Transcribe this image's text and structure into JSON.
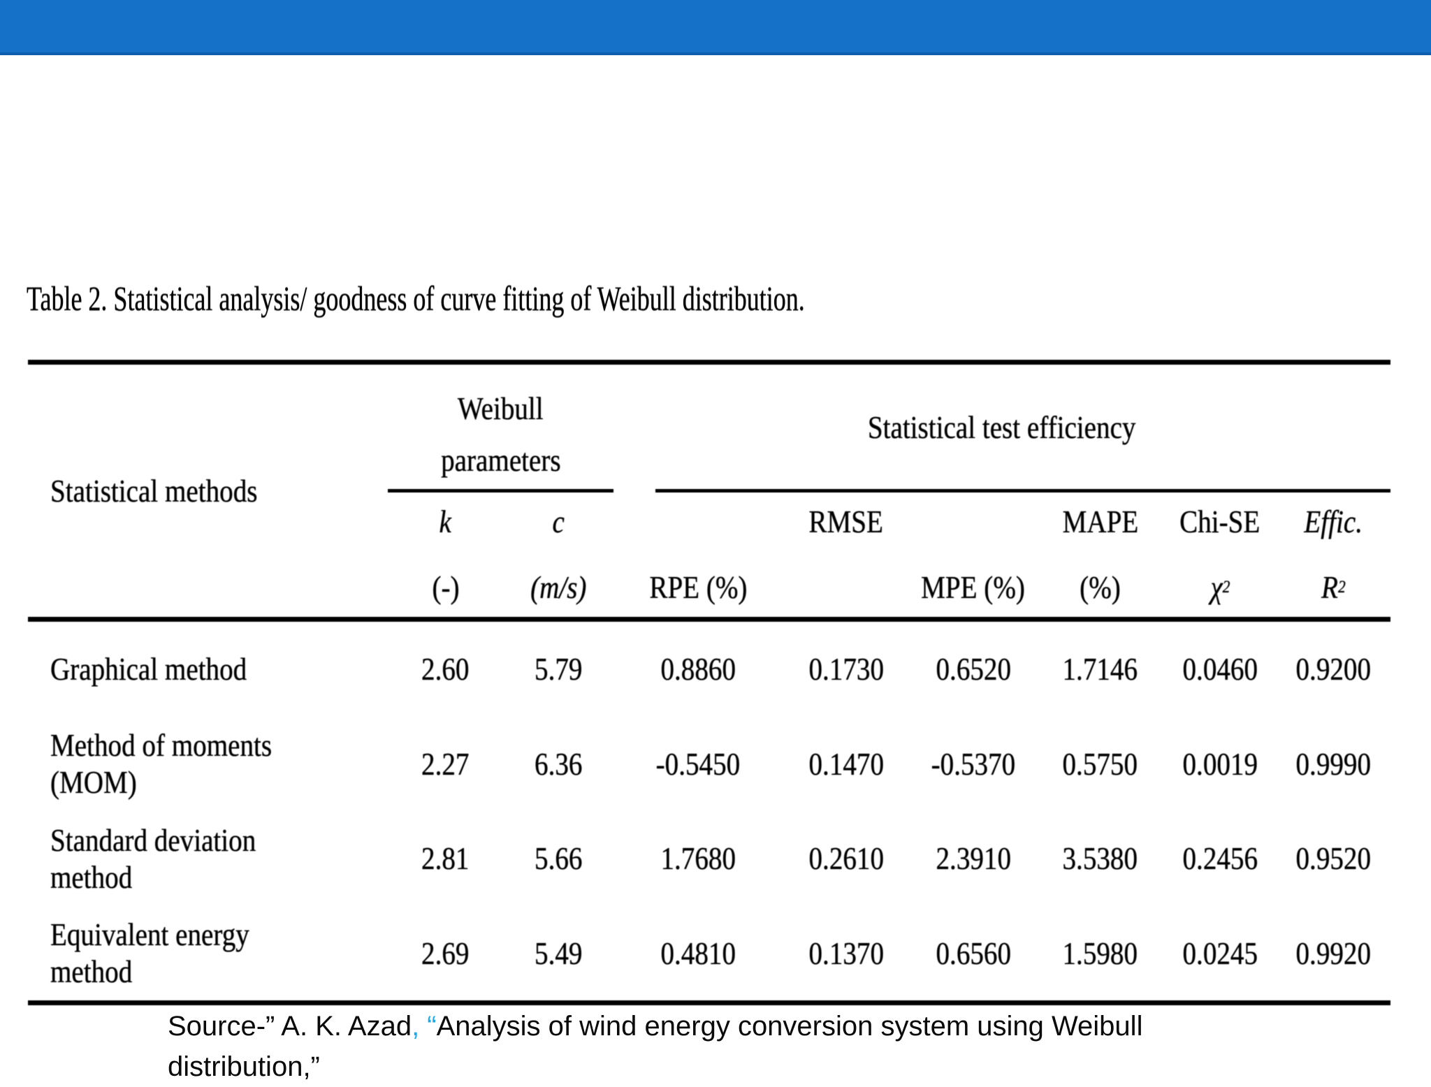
{
  "top_bar": {
    "color": "#1570C8",
    "edge_color": "#0D5FAE"
  },
  "title": "Table 2. Statistical analysis/ goodness of curve fitting of Weibull distribution.",
  "table": {
    "col1_header": "Statistical methods",
    "group_headers": {
      "weibull_line1": "Weibull",
      "weibull_line2": "parameters",
      "efficiency": "Statistical test efficiency"
    },
    "sub_headers": {
      "k": {
        "top": "k",
        "bottom": "(-)"
      },
      "c": {
        "top": "c",
        "bottom": "(m/s)"
      },
      "rpe": {
        "top": "",
        "bottom": "RPE (%)"
      },
      "rmse": {
        "top": "RMSE",
        "bottom": ""
      },
      "mpe": {
        "top": "",
        "bottom": "MPE (%)"
      },
      "mape": {
        "top": "MAPE",
        "bottom": "(%)"
      },
      "chi": {
        "top": "Chi-SE",
        "bottom_base": "χ",
        "bottom_sup": "2"
      },
      "effic": {
        "top": "Effic.",
        "bottom_base": "R",
        "bottom_sup": "2"
      }
    },
    "rows": [
      {
        "label": "Graphical method",
        "values": [
          "2.60",
          "5.79",
          "0.8860",
          "0.1730",
          "0.6520",
          "1.7146",
          "0.0460",
          "0.9200"
        ]
      },
      {
        "label": "Method of moments (MOM)",
        "values": [
          "2.27",
          "6.36",
          "-0.5450",
          "0.1470",
          "-0.5370",
          "0.5750",
          "0.0019",
          "0.9990"
        ]
      },
      {
        "label": "Standard deviation method",
        "values": [
          "2.81",
          "5.66",
          "1.7680",
          "0.2610",
          "2.3910",
          "3.5380",
          "0.2456",
          "0.9520"
        ]
      },
      {
        "label": "Equivalent energy method",
        "values": [
          "2.69",
          "5.49",
          "0.4810",
          "0.1370",
          "0.6560",
          "1.5980",
          "0.0245",
          "0.9920"
        ]
      }
    ]
  },
  "source": {
    "line1_black1": "Source-” A. K. Azad",
    "line1_accent": ", “",
    "line1_black2": "Analysis of wind energy conversion system using Weibull",
    "line2": "distribution,”",
    "accent_color": "#1FA8E8"
  }
}
